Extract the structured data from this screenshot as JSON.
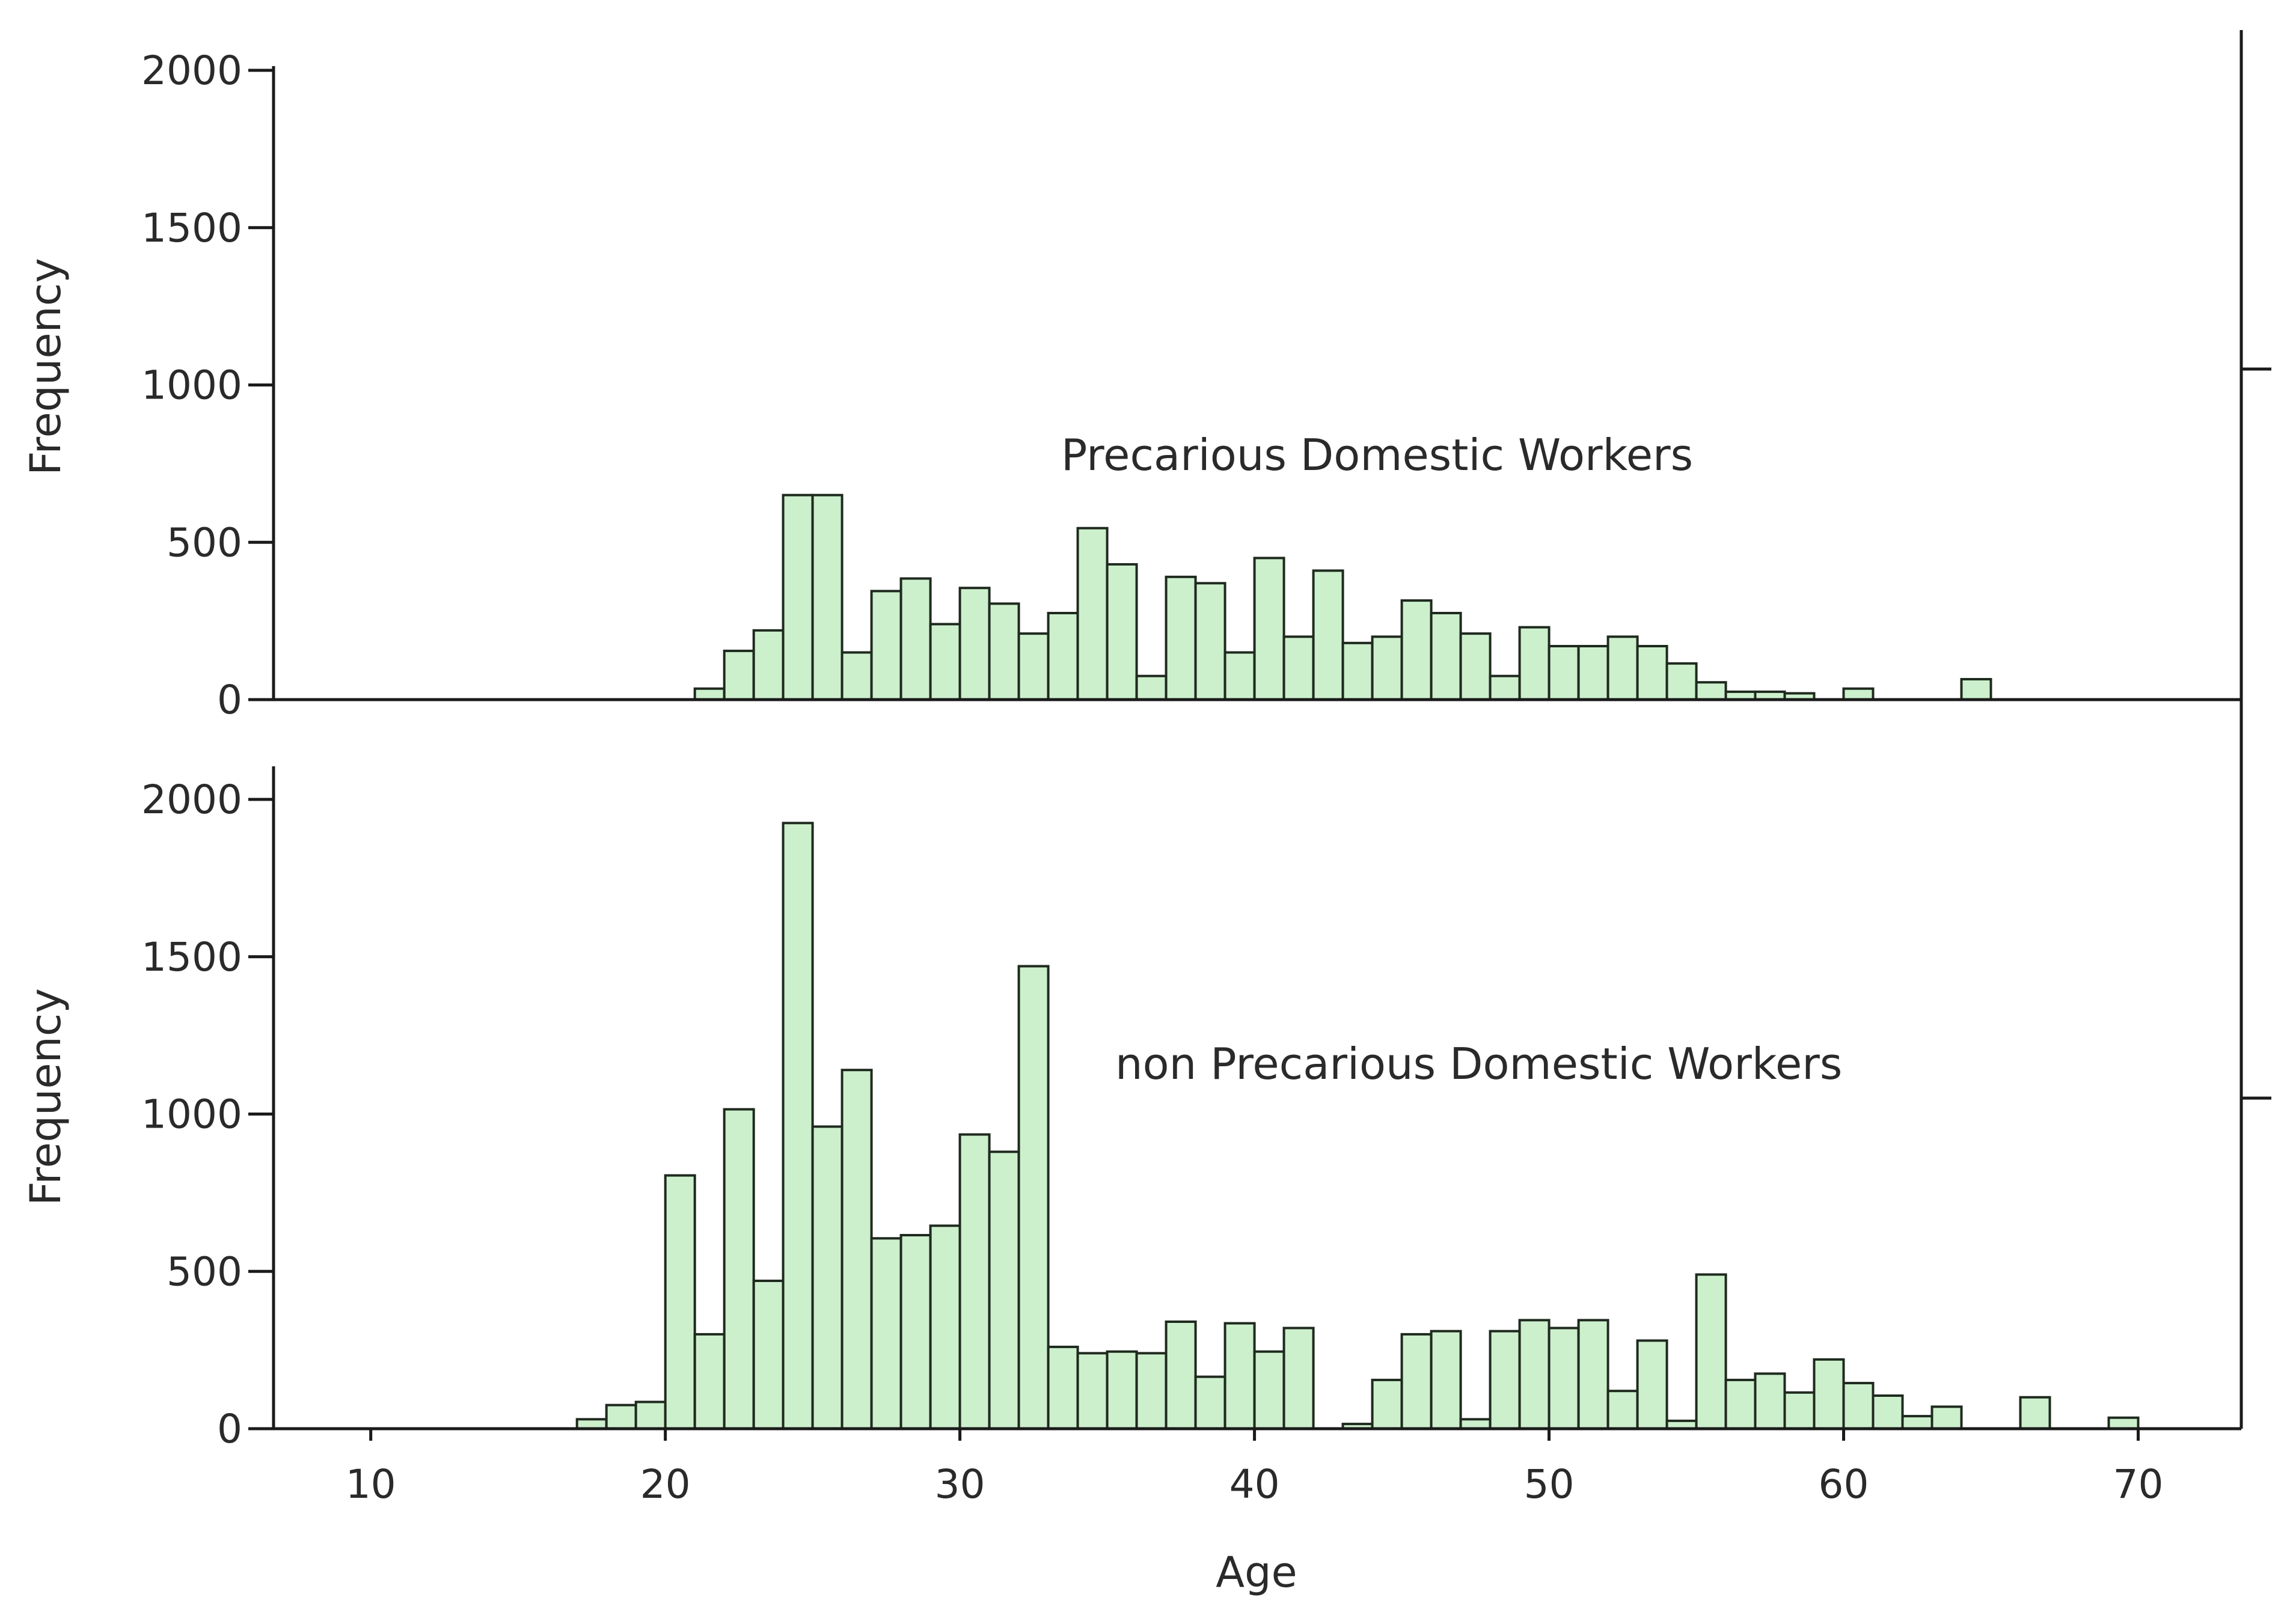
{
  "chart_data": [
    {
      "type": "bar",
      "panel": "top",
      "annotation": "Precarious Domestic Workers",
      "ylabel": "Frequency",
      "xlabel": "",
      "xlim": [
        6.7,
        73.5
      ],
      "ylim": [
        0,
        2000
      ],
      "yticks": [
        0,
        500,
        1000,
        1500,
        2000
      ],
      "bar_color": "#ccf0cc",
      "bin_width": 1,
      "bins": [
        {
          "x": 21,
          "v": 35
        },
        {
          "x": 22,
          "v": 155
        },
        {
          "x": 23,
          "v": 220
        },
        {
          "x": 24,
          "v": 650
        },
        {
          "x": 25,
          "v": 650
        },
        {
          "x": 26,
          "v": 150
        },
        {
          "x": 27,
          "v": 345
        },
        {
          "x": 28,
          "v": 385
        },
        {
          "x": 29,
          "v": 240
        },
        {
          "x": 30,
          "v": 355
        },
        {
          "x": 31,
          "v": 305
        },
        {
          "x": 32,
          "v": 210
        },
        {
          "x": 33,
          "v": 275
        },
        {
          "x": 34,
          "v": 545
        },
        {
          "x": 35,
          "v": 430
        },
        {
          "x": 36,
          "v": 75
        },
        {
          "x": 37,
          "v": 390
        },
        {
          "x": 38,
          "v": 370
        },
        {
          "x": 39,
          "v": 150
        },
        {
          "x": 40,
          "v": 450
        },
        {
          "x": 41,
          "v": 200
        },
        {
          "x": 42,
          "v": 410
        },
        {
          "x": 43,
          "v": 180
        },
        {
          "x": 44,
          "v": 200
        },
        {
          "x": 45,
          "v": 315
        },
        {
          "x": 46,
          "v": 275
        },
        {
          "x": 47,
          "v": 210
        },
        {
          "x": 48,
          "v": 75
        },
        {
          "x": 49,
          "v": 230
        },
        {
          "x": 50,
          "v": 170
        },
        {
          "x": 51,
          "v": 170
        },
        {
          "x": 52,
          "v": 200
        },
        {
          "x": 53,
          "v": 170
        },
        {
          "x": 54,
          "v": 115
        },
        {
          "x": 55,
          "v": 55
        },
        {
          "x": 56,
          "v": 25
        },
        {
          "x": 57,
          "v": 25
        },
        {
          "x": 58,
          "v": 20
        },
        {
          "x": 60,
          "v": 35
        },
        {
          "x": 64,
          "v": 65
        }
      ]
    },
    {
      "type": "bar",
      "panel": "bottom",
      "annotation": "non Precarious Domestic Workers",
      "ylabel": "Frequency",
      "xlabel": "Age",
      "xlim": [
        6.7,
        73.5
      ],
      "ylim": [
        0,
        2000
      ],
      "xticks": [
        10,
        20,
        30,
        40,
        50,
        60,
        70
      ],
      "yticks": [
        0,
        500,
        1000,
        1500,
        2000
      ],
      "bar_color": "#ccf0cc",
      "bin_width": 1,
      "bins": [
        {
          "x": 17,
          "v": 30
        },
        {
          "x": 18,
          "v": 75
        },
        {
          "x": 19,
          "v": 85
        },
        {
          "x": 20,
          "v": 805
        },
        {
          "x": 21,
          "v": 300
        },
        {
          "x": 22,
          "v": 1015
        },
        {
          "x": 23,
          "v": 470
        },
        {
          "x": 24,
          "v": 1925
        },
        {
          "x": 25,
          "v": 960
        },
        {
          "x": 26,
          "v": 1140
        },
        {
          "x": 27,
          "v": 605
        },
        {
          "x": 28,
          "v": 615
        },
        {
          "x": 29,
          "v": 645
        },
        {
          "x": 30,
          "v": 935
        },
        {
          "x": 31,
          "v": 880
        },
        {
          "x": 32,
          "v": 1470
        },
        {
          "x": 33,
          "v": 260
        },
        {
          "x": 34,
          "v": 240
        },
        {
          "x": 35,
          "v": 245
        },
        {
          "x": 36,
          "v": 240
        },
        {
          "x": 37,
          "v": 340
        },
        {
          "x": 38,
          "v": 165
        },
        {
          "x": 39,
          "v": 335
        },
        {
          "x": 40,
          "v": 245
        },
        {
          "x": 41,
          "v": 320
        },
        {
          "x": 43,
          "v": 15
        },
        {
          "x": 44,
          "v": 155
        },
        {
          "x": 45,
          "v": 300
        },
        {
          "x": 46,
          "v": 310
        },
        {
          "x": 47,
          "v": 30
        },
        {
          "x": 48,
          "v": 310
        },
        {
          "x": 49,
          "v": 345
        },
        {
          "x": 50,
          "v": 320
        },
        {
          "x": 51,
          "v": 345
        },
        {
          "x": 52,
          "v": 120
        },
        {
          "x": 53,
          "v": 280
        },
        {
          "x": 54,
          "v": 25
        },
        {
          "x": 55,
          "v": 490
        },
        {
          "x": 56,
          "v": 155
        },
        {
          "x": 57,
          "v": 175
        },
        {
          "x": 58,
          "v": 115
        },
        {
          "x": 59,
          "v": 220
        },
        {
          "x": 60,
          "v": 145
        },
        {
          "x": 61,
          "v": 105
        },
        {
          "x": 62,
          "v": 40
        },
        {
          "x": 63,
          "v": 70
        },
        {
          "x": 66,
          "v": 100
        },
        {
          "x": 69,
          "v": 35
        }
      ]
    }
  ]
}
